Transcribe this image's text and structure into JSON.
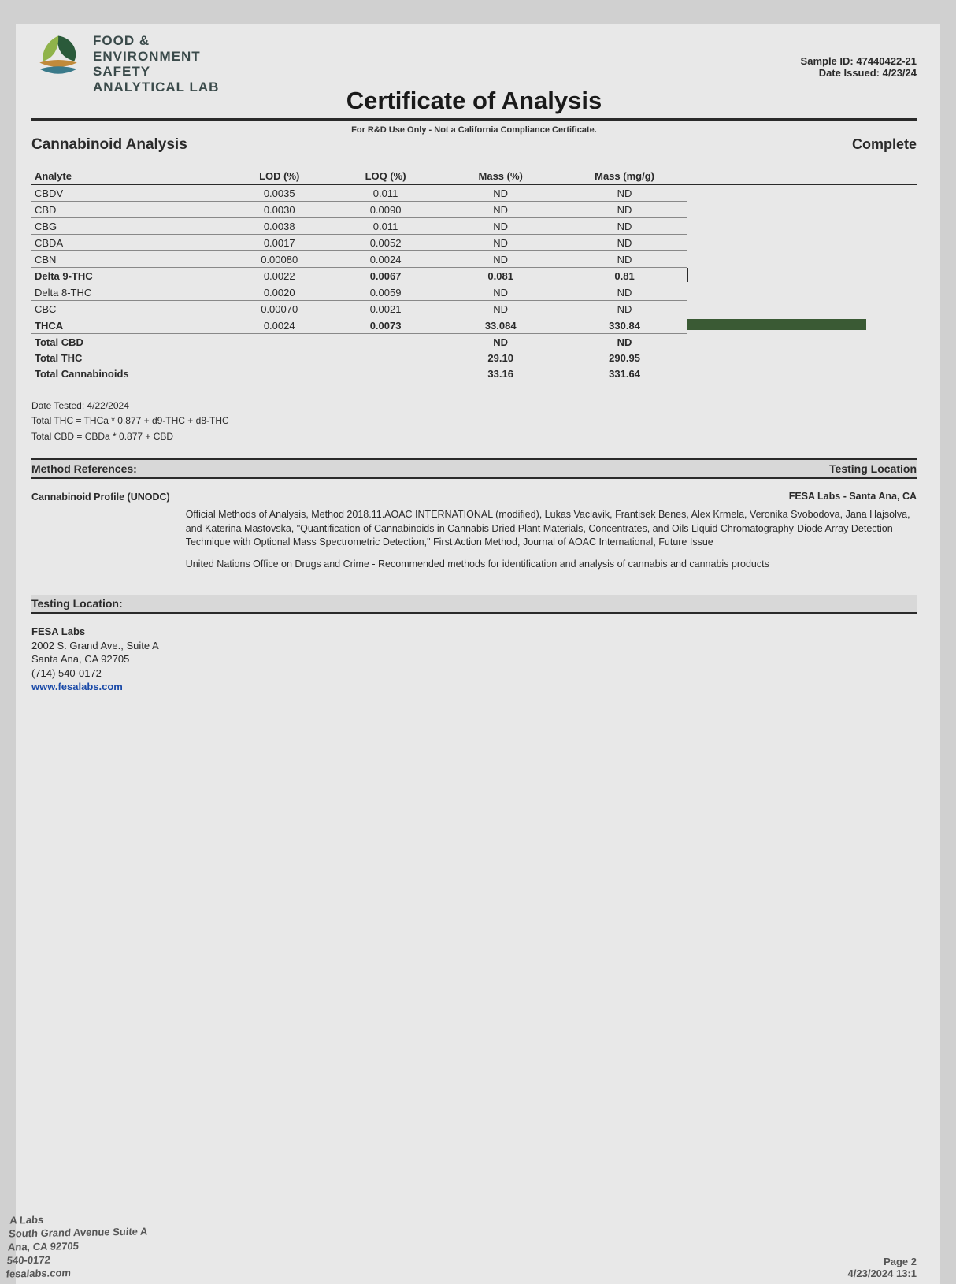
{
  "lab": {
    "name_line1": "FOOD &",
    "name_line2": "ENVIRONMENT",
    "name_line3": "SAFETY",
    "name_line4": "ANALYTICAL LAB",
    "logo_colors": {
      "dark_green": "#2a5a3a",
      "light_green": "#8fb34a",
      "teal": "#3a7a8a",
      "orange": "#c08a3a"
    }
  },
  "meta": {
    "sample_id_label": "Sample ID:",
    "sample_id": "47440422-21",
    "date_issued_label": "Date Issued:",
    "date_issued": "4/23/24"
  },
  "title": "Certificate of Analysis",
  "subtitle": "For R&D Use Only - Not a California Compliance Certificate.",
  "section": "Cannabinoid Analysis",
  "status": "Complete",
  "table": {
    "headers": [
      "Analyte",
      "LOD (%)",
      "LOQ (%)",
      "Mass (%)",
      "Mass (mg/g)"
    ],
    "rows": [
      {
        "analyte": "CBDV",
        "lod": "0.0035",
        "loq": "0.011",
        "mass_pct": "ND",
        "mass_mgg": "ND",
        "bold": false,
        "bar_pct": 0,
        "tick": false
      },
      {
        "analyte": "CBD",
        "lod": "0.0030",
        "loq": "0.0090",
        "mass_pct": "ND",
        "mass_mgg": "ND",
        "bold": false,
        "bar_pct": 0,
        "tick": false
      },
      {
        "analyte": "CBG",
        "lod": "0.0038",
        "loq": "0.011",
        "mass_pct": "ND",
        "mass_mgg": "ND",
        "bold": false,
        "bar_pct": 0,
        "tick": false
      },
      {
        "analyte": "CBDA",
        "lod": "0.0017",
        "loq": "0.0052",
        "mass_pct": "ND",
        "mass_mgg": "ND",
        "bold": false,
        "bar_pct": 0,
        "tick": false
      },
      {
        "analyte": "CBN",
        "lod": "0.00080",
        "loq": "0.0024",
        "mass_pct": "ND",
        "mass_mgg": "ND",
        "bold": false,
        "bar_pct": 0,
        "tick": false
      },
      {
        "analyte": "Delta 9-THC",
        "lod": "0.0022",
        "loq": "0.0067",
        "mass_pct": "0.081",
        "mass_mgg": "0.81",
        "bold": true,
        "bar_pct": 0,
        "tick": true
      },
      {
        "analyte": "Delta 8-THC",
        "lod": "0.0020",
        "loq": "0.0059",
        "mass_pct": "ND",
        "mass_mgg": "ND",
        "bold": false,
        "bar_pct": 0,
        "tick": false
      },
      {
        "analyte": "CBC",
        "lod": "0.00070",
        "loq": "0.0021",
        "mass_pct": "ND",
        "mass_mgg": "ND",
        "bold": false,
        "bar_pct": 0,
        "tick": false
      },
      {
        "analyte": "THCA",
        "lod": "0.0024",
        "loq": "0.0073",
        "mass_pct": "33.084",
        "mass_mgg": "330.84",
        "bold": true,
        "bar_pct": 78,
        "tick": false
      }
    ],
    "totals": [
      {
        "label": "Total CBD",
        "mass_pct": "ND",
        "mass_mgg": "ND"
      },
      {
        "label": "Total THC",
        "mass_pct": "29.10",
        "mass_mgg": "290.95"
      },
      {
        "label": "Total Cannabinoids",
        "mass_pct": "33.16",
        "mass_mgg": "331.64"
      }
    ],
    "col_widths": [
      "22%",
      "12%",
      "12%",
      "14%",
      "14%",
      "26%"
    ],
    "bar_color": "#3a5a34"
  },
  "notes": {
    "date_tested": "Date Tested: 4/22/2024",
    "thc_formula": "Total THC = THCa * 0.877 + d9-THC + d8-THC",
    "cbd_formula": "Total CBD = CBDa * 0.877 + CBD"
  },
  "method_refs": {
    "heading": "Method References:",
    "right_heading": "Testing Location",
    "profile_label": "Cannabinoid Profile (UNODC)",
    "location_line": "FESA Labs - Santa Ana, CA",
    "para1": "Official Methods of Analysis, Method 2018.11.AOAC INTERNATIONAL (modified), Lukas Vaclavik, Frantisek Benes, Alex Krmela, Veronika Svobodova, Jana Hajsolva, and Katerina Mastovska, \"Quantification of Cannabinoids in Cannabis Dried Plant Materials, Concentrates, and Oils Liquid Chromatography-Diode Array Detection Technique with Optional Mass Spectrometric Detection,\" First Action Method, Journal of AOAC International, Future Issue",
    "para2": "United Nations Office on Drugs and Crime - Recommended methods for identification and analysis of cannabis and cannabis products"
  },
  "testing_location": {
    "heading": "Testing Location:",
    "name": "FESA Labs",
    "addr1": "2002 S. Grand Ave., Suite A",
    "addr2": "Santa Ana, CA 92705",
    "phone": "(714) 540-0172",
    "url": "www.fesalabs.com"
  },
  "footer": {
    "left_l1": "A Labs",
    "left_l2": "South Grand Avenue Suite A",
    "left_l3": "Ana, CA 92705",
    "left_l4": "540-0172",
    "left_l5": "fesalabs.com",
    "page": "Page 2",
    "timestamp": "4/23/2024 13:1"
  }
}
